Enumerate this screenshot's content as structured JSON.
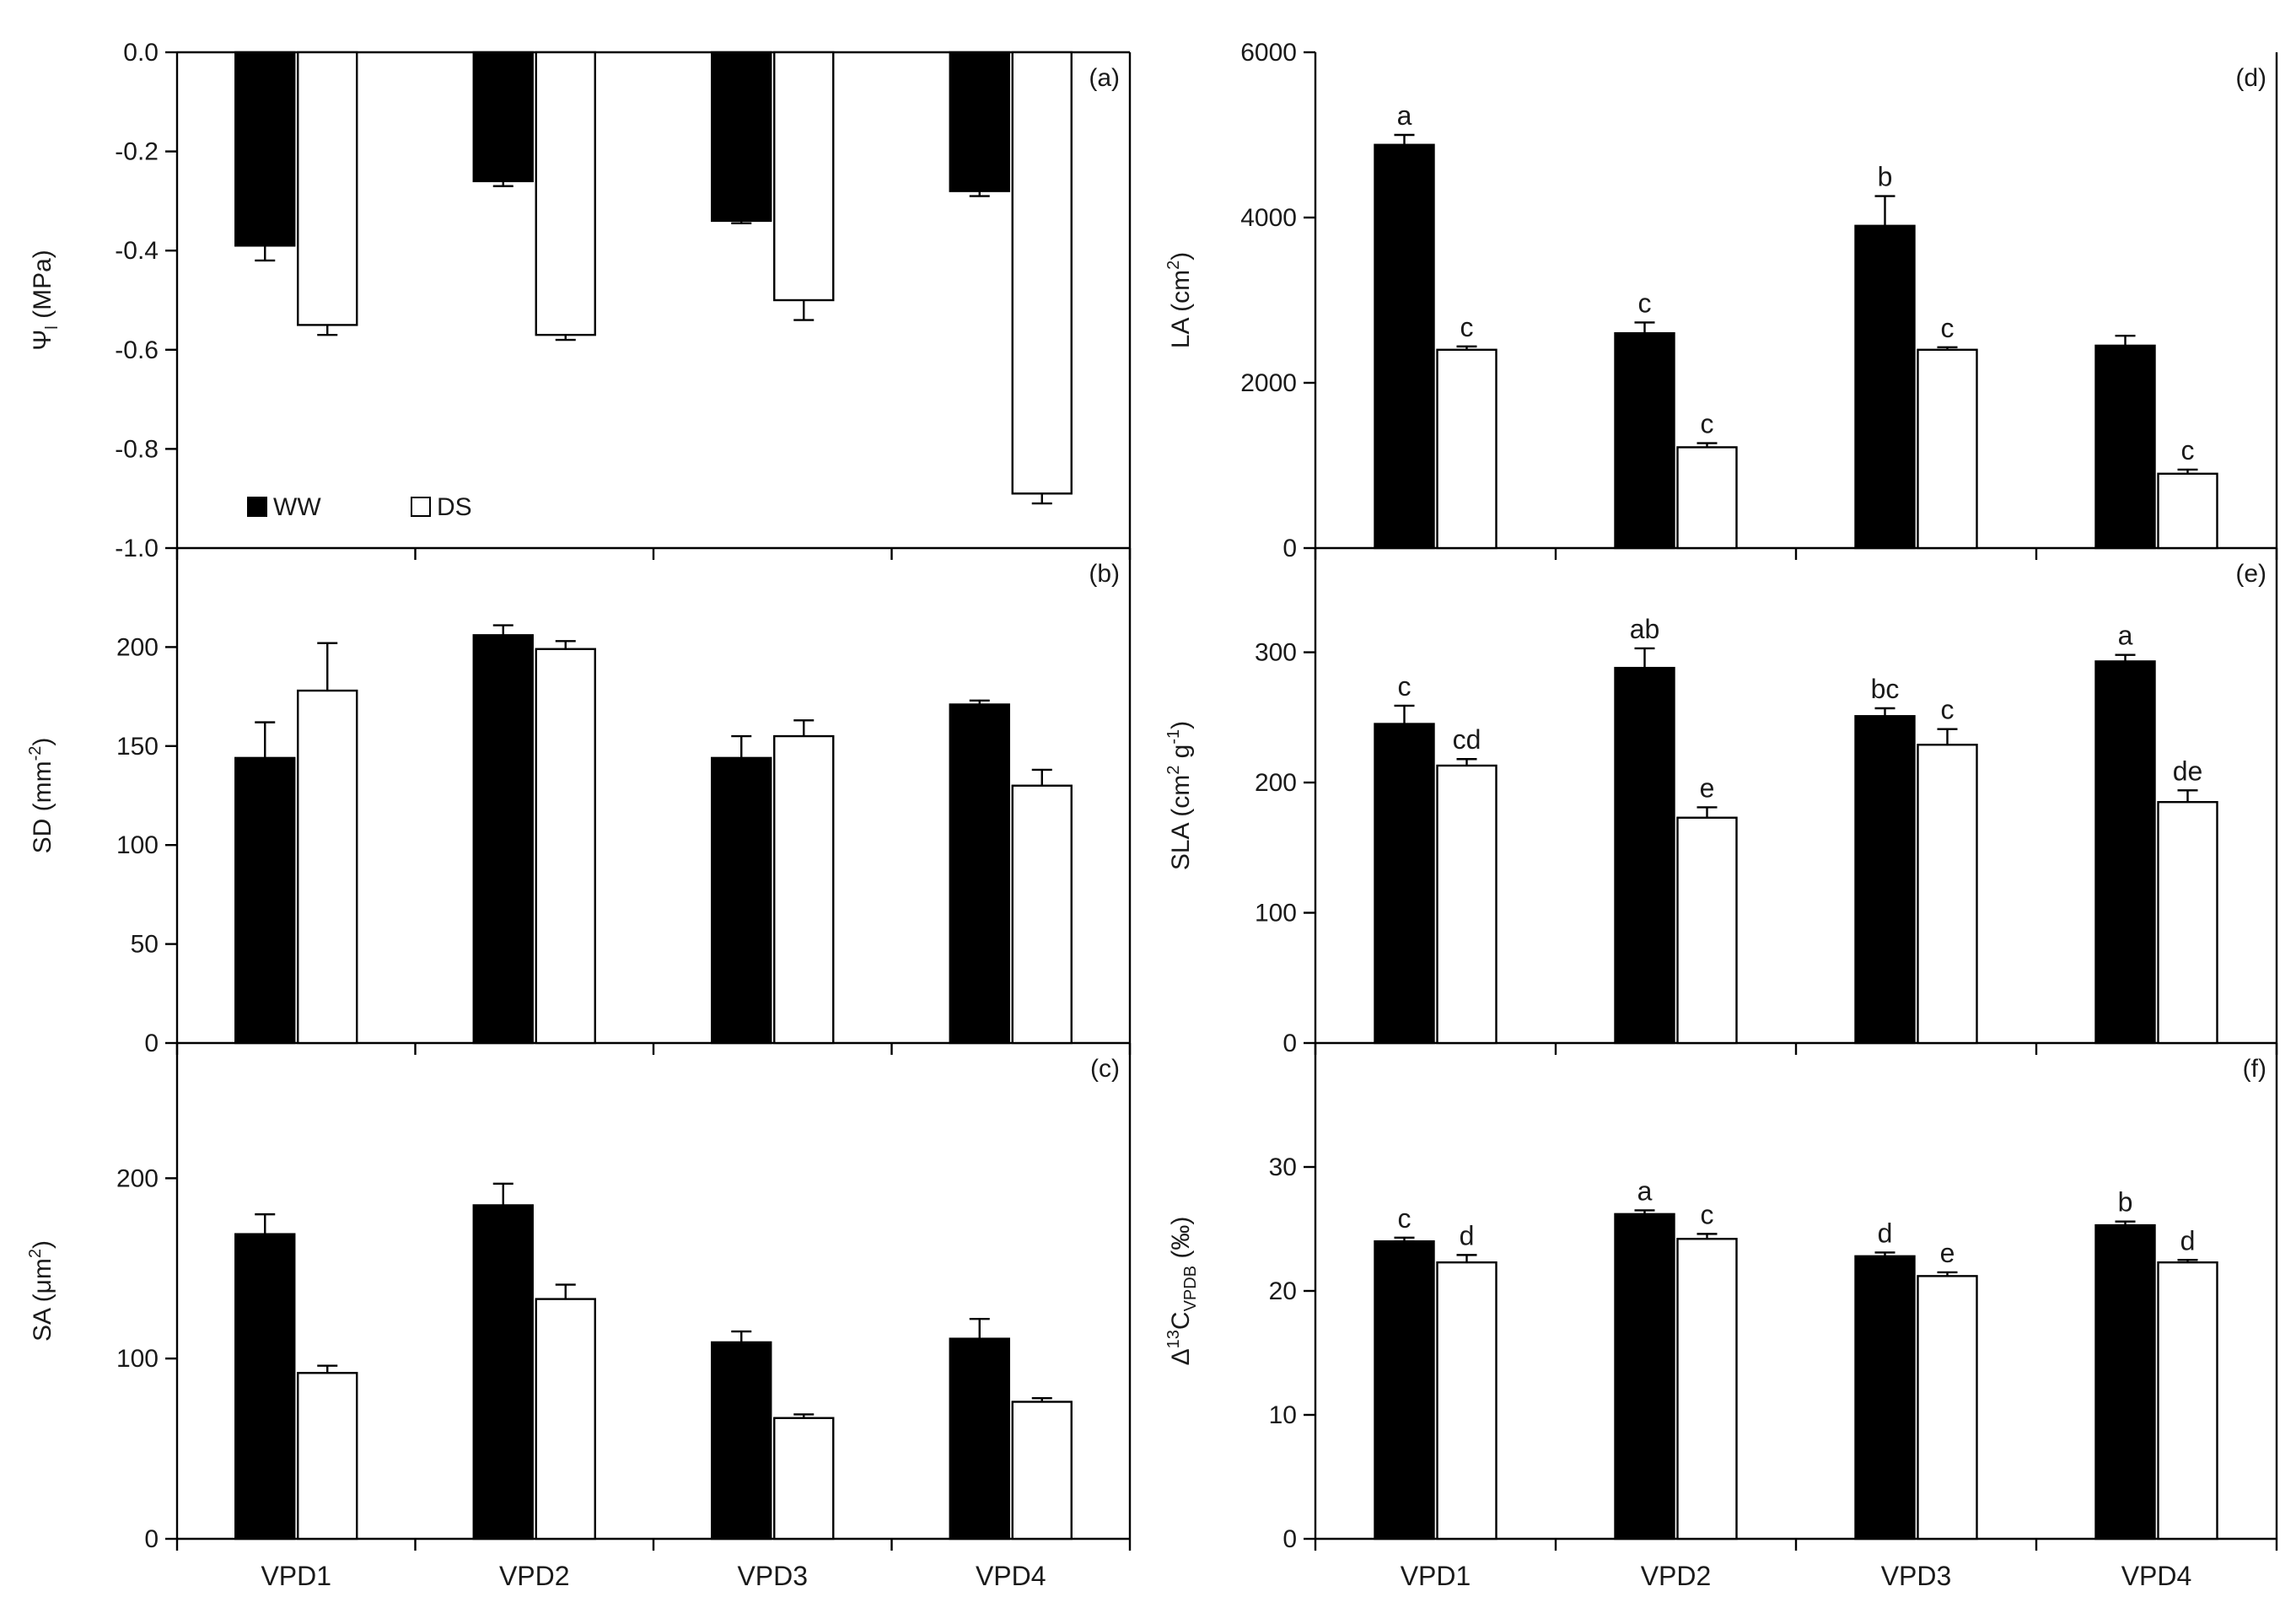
{
  "chart_data": [
    {
      "id": "a",
      "type": "bar",
      "panel_label": "(a)",
      "ylabel": "Ψl (MPa)",
      "ylabel_main": "Ψ",
      "ylabel_sub": "l",
      "ylabel_tail": " (MPa)",
      "ylim": [
        -1.0,
        0.0
      ],
      "yticks": [
        "0.0",
        "-0.2",
        "-0.4",
        "-0.6",
        "-0.8",
        "-1.0"
      ],
      "categories": [
        "VPD1",
        "VPD2",
        "VPD3",
        "VPD4"
      ],
      "series": [
        {
          "name": "WW",
          "values": [
            -0.39,
            -0.26,
            -0.34,
            -0.28
          ],
          "errors": [
            0.03,
            0.01,
            0.005,
            0.01
          ]
        },
        {
          "name": "DS",
          "values": [
            -0.55,
            -0.57,
            -0.5,
            -0.89
          ],
          "errors": [
            0.02,
            0.01,
            0.04,
            0.02
          ]
        }
      ],
      "letters": [
        [
          "",
          ""
        ],
        [
          "",
          ""
        ],
        [
          "",
          ""
        ],
        [
          "",
          ""
        ]
      ],
      "legend": {
        "position": "bottom-left",
        "items": [
          "WW",
          "DS"
        ]
      }
    },
    {
      "id": "b",
      "type": "bar",
      "panel_label": "(b)",
      "ylabel": "SD (mm⁻²)",
      "ylabel_main": "SD (mm",
      "ylabel_sup": "-2",
      "ylabel_tail": ")",
      "ylim": [
        0,
        250
      ],
      "yticks": [
        "0",
        "50",
        "100",
        "150",
        "200"
      ],
      "categories": [
        "VPD1",
        "VPD2",
        "VPD3",
        "VPD4"
      ],
      "series": [
        {
          "name": "WW",
          "values": [
            144,
            206,
            144,
            171
          ],
          "errors": [
            18,
            5,
            11,
            2
          ]
        },
        {
          "name": "DS",
          "values": [
            178,
            199,
            155,
            130
          ],
          "errors": [
            24,
            4,
            8,
            8
          ]
        }
      ],
      "letters": [
        [
          "",
          ""
        ],
        [
          "",
          ""
        ],
        [
          "",
          ""
        ],
        [
          "",
          ""
        ]
      ]
    },
    {
      "id": "c",
      "type": "bar",
      "panel_label": "(c)",
      "ylabel": "SA (μm²)",
      "ylabel_main": "SA (μm",
      "ylabel_sup": "2",
      "ylabel_tail": ")",
      "ylim": [
        0,
        275
      ],
      "yticks": [
        "0",
        "100",
        "200"
      ],
      "categories": [
        "VPD1",
        "VPD2",
        "VPD3",
        "VPD4"
      ],
      "series": [
        {
          "name": "WW",
          "values": [
            169,
            185,
            109,
            111
          ],
          "errors": [
            11,
            12,
            6,
            11
          ]
        },
        {
          "name": "DS",
          "values": [
            92,
            133,
            67,
            76
          ],
          "errors": [
            4,
            8,
            2,
            2
          ]
        }
      ],
      "letters": [
        [
          "",
          ""
        ],
        [
          "",
          ""
        ],
        [
          "",
          ""
        ],
        [
          "",
          ""
        ]
      ]
    },
    {
      "id": "d",
      "type": "bar",
      "panel_label": "(d)",
      "ylabel": "LA (cm²)",
      "ylabel_main": "LA (cm",
      "ylabel_sup": "2",
      "ylabel_tail": ")",
      "ylim": [
        0,
        6000
      ],
      "yticks": [
        "0",
        "2000",
        "4000",
        "6000"
      ],
      "categories": [
        "VPD1",
        "VPD2",
        "VPD3",
        "VPD4"
      ],
      "series": [
        {
          "name": "WW",
          "values": [
            4880,
            2600,
            3900,
            2450
          ],
          "errors": [
            120,
            130,
            360,
            120
          ]
        },
        {
          "name": "DS",
          "values": [
            2400,
            1220,
            2400,
            900
          ],
          "errors": [
            40,
            50,
            30,
            50
          ]
        }
      ],
      "letters": [
        [
          "a",
          "c"
        ],
        [
          "c",
          "c"
        ],
        [
          "b",
          "c"
        ],
        [
          "",
          "c"
        ]
      ]
    },
    {
      "id": "e",
      "type": "bar",
      "panel_label": "(e)",
      "ylabel": "SLA (cm² g⁻¹)",
      "ylabel_main": "SLA (cm",
      "ylabel_sup": "2",
      "ylabel_mid": " g",
      "ylabel_sup2": "-1",
      "ylabel_tail": ")",
      "ylim": [
        0,
        380
      ],
      "yticks": [
        "0",
        "100",
        "200",
        "300"
      ],
      "categories": [
        "VPD1",
        "VPD2",
        "VPD3",
        "VPD4"
      ],
      "series": [
        {
          "name": "WW",
          "values": [
            245,
            288,
            251,
            293
          ],
          "errors": [
            14,
            15,
            6,
            5
          ]
        },
        {
          "name": "DS",
          "values": [
            213,
            173,
            229,
            185
          ],
          "errors": [
            5,
            8,
            12,
            9
          ]
        }
      ],
      "letters": [
        [
          "c",
          "cd"
        ],
        [
          "ab",
          "e"
        ],
        [
          "bc",
          "c"
        ],
        [
          "a",
          "de"
        ]
      ]
    },
    {
      "id": "f",
      "type": "bar",
      "panel_label": "(f)",
      "ylabel": "Δ13CVPDB (‰)",
      "ylabel_main": "Δ",
      "ylabel_sup": "13",
      "ylabel_mid": "C",
      "ylabel_sub": "VPDB",
      "ylabel_tail": " (‰)",
      "ylim": [
        0,
        40
      ],
      "yticks": [
        "0",
        "10",
        "20",
        "30"
      ],
      "categories": [
        "VPD1",
        "VPD2",
        "VPD3",
        "VPD4"
      ],
      "series": [
        {
          "name": "WW",
          "values": [
            24,
            26.2,
            22.8,
            25.3
          ],
          "errors": [
            0.3,
            0.3,
            0.3,
            0.3
          ]
        },
        {
          "name": "DS",
          "values": [
            22.3,
            24.2,
            21.2,
            22.3
          ],
          "errors": [
            0.6,
            0.4,
            0.3,
            0.2
          ]
        }
      ],
      "letters": [
        [
          "c",
          "d"
        ],
        [
          "a",
          "c"
        ],
        [
          "d",
          "e"
        ],
        [
          "b",
          "d"
        ]
      ]
    }
  ],
  "colors": {
    "ww_fill": "#000000",
    "ds_fill": "#ffffff",
    "stroke": "#000000",
    "text": "#1a1a1a"
  }
}
